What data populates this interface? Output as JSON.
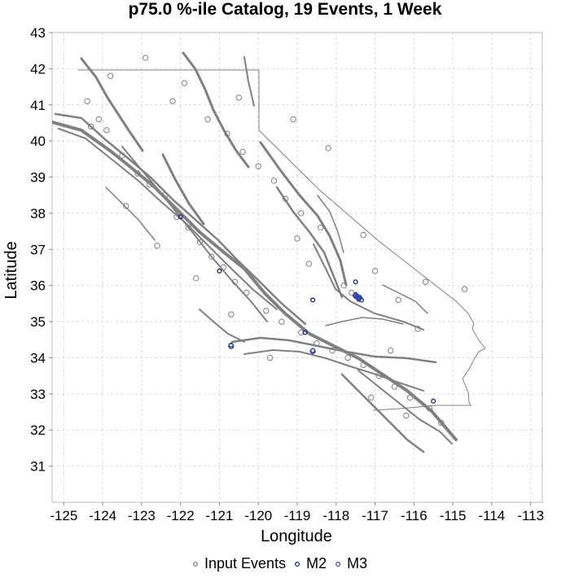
{
  "chart_data": {
    "type": "scatter",
    "title": "p75.0 %-ile Catalog, 19 Events, 1 Week",
    "xlabel": "Longitude",
    "ylabel": "Latitude",
    "xlim": [
      -125.3,
      -112.7
    ],
    "ylim": [
      30.0,
      43.0
    ],
    "x_ticks": [
      "-125",
      "-124",
      "-123",
      "-122",
      "-121",
      "-120",
      "-119",
      "-118",
      "-117",
      "-116",
      "-115",
      "-114",
      "-113"
    ],
    "y_ticks": [
      "31",
      "32",
      "33",
      "34",
      "35",
      "36",
      "37",
      "38",
      "39",
      "40",
      "41",
      "42",
      "43"
    ],
    "grid": true,
    "legend_position": "bottom",
    "colors": {
      "input_events": "#808080",
      "m2": "#1a237e",
      "m3": "#3949ab",
      "faults": "#808080",
      "border": "#808080",
      "grid": "#d9d9d9"
    },
    "series": [
      {
        "name": "Input Events",
        "points": [
          [
            -124.3,
            40.4
          ],
          [
            -124.1,
            40.6
          ],
          [
            -123.9,
            40.3
          ],
          [
            -123.5,
            39.6
          ],
          [
            -123.1,
            39.1
          ],
          [
            -122.8,
            38.8
          ],
          [
            -122.4,
            38.5
          ],
          [
            -122.1,
            37.9
          ],
          [
            -121.8,
            37.6
          ],
          [
            -121.5,
            37.2
          ],
          [
            -121.2,
            36.8
          ],
          [
            -120.9,
            36.5
          ],
          [
            -120.6,
            36.1
          ],
          [
            -120.3,
            35.8
          ],
          [
            -119.8,
            35.3
          ],
          [
            -119.4,
            35.0
          ],
          [
            -118.9,
            34.7
          ],
          [
            -118.5,
            34.4
          ],
          [
            -118.1,
            34.2
          ],
          [
            -117.7,
            34.0
          ],
          [
            -117.3,
            33.8
          ],
          [
            -116.9,
            33.5
          ],
          [
            -116.5,
            33.2
          ],
          [
            -116.1,
            32.9
          ],
          [
            -115.6,
            32.6
          ],
          [
            -115.3,
            32.2
          ],
          [
            -117.6,
            35.8
          ],
          [
            -117.8,
            36.0
          ],
          [
            -118.4,
            37.6
          ],
          [
            -118.9,
            38.0
          ],
          [
            -119.3,
            38.4
          ],
          [
            -119.6,
            38.9
          ],
          [
            -120.0,
            39.3
          ],
          [
            -120.4,
            39.7
          ],
          [
            -120.8,
            40.2
          ],
          [
            -121.3,
            40.6
          ],
          [
            -122.2,
            41.1
          ],
          [
            -121.9,
            41.6
          ],
          [
            -120.5,
            41.2
          ],
          [
            -117.0,
            36.4
          ],
          [
            -116.4,
            35.6
          ],
          [
            -115.9,
            34.8
          ],
          [
            -116.6,
            34.2
          ],
          [
            -117.1,
            32.9
          ],
          [
            -116.2,
            32.4
          ],
          [
            -118.7,
            36.6
          ],
          [
            -119.0,
            37.3
          ],
          [
            -120.7,
            35.2
          ],
          [
            -121.6,
            36.2
          ],
          [
            -122.6,
            37.1
          ],
          [
            -123.4,
            38.2
          ],
          [
            -124.4,
            41.1
          ],
          [
            -123.8,
            41.8
          ],
          [
            -122.9,
            42.3
          ],
          [
            -119.1,
            40.6
          ],
          [
            -118.2,
            39.8
          ],
          [
            -117.3,
            37.4
          ],
          [
            -115.7,
            36.1
          ],
          [
            -114.7,
            35.9
          ],
          [
            -119.7,
            34.0
          ]
        ]
      },
      {
        "name": "M2",
        "points": [
          [
            -122.0,
            37.9
          ],
          [
            -121.0,
            36.4
          ],
          [
            -118.6,
            35.6
          ],
          [
            -117.5,
            36.1
          ],
          [
            -117.45,
            35.7
          ],
          [
            -117.4,
            35.65
          ],
          [
            -117.35,
            35.6
          ],
          [
            -118.8,
            34.7
          ],
          [
            -118.6,
            34.2
          ],
          [
            -120.7,
            34.35
          ],
          [
            -115.5,
            32.8
          ],
          [
            -117.5,
            35.75
          ],
          [
            -117.42,
            35.62
          ]
        ]
      },
      {
        "name": "M3",
        "points": [
          [
            -117.45,
            35.68
          ],
          [
            -117.5,
            35.72
          ],
          [
            -117.4,
            35.66
          ],
          [
            -118.6,
            34.18
          ],
          [
            -120.7,
            34.32
          ],
          [
            -117.48,
            35.7
          ]
        ]
      }
    ]
  }
}
